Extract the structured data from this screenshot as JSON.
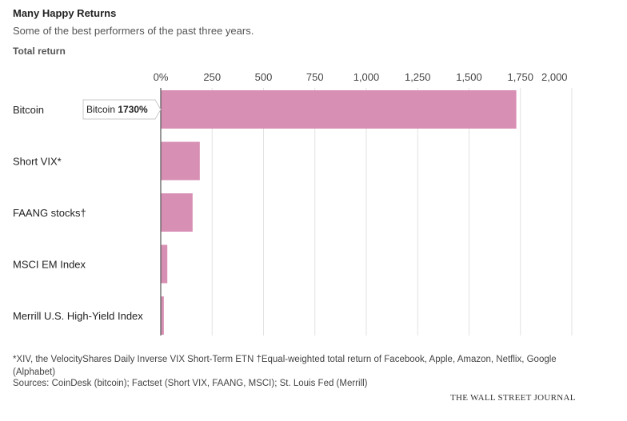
{
  "chart_data": {
    "type": "bar",
    "orientation": "horizontal",
    "title": "Many Happy Returns",
    "subtitle": "Some of the best performers of the past three years.",
    "ylabel": "Total return",
    "xlim": [
      0,
      2000
    ],
    "ticks": [
      0,
      250,
      500,
      750,
      1000,
      1250,
      1500,
      1750,
      2000
    ],
    "tick_labels": [
      "0%",
      "250",
      "500",
      "750",
      "1,000",
      "1,250",
      "1,500",
      "1,750",
      "2,000"
    ],
    "categories": [
      "Bitcoin",
      "Short VIX*",
      "FAANG stocks†",
      "MSCI EM Index",
      "Merrill U.S. High-Yield Index"
    ],
    "values": [
      1730,
      190,
      155,
      32,
      15
    ],
    "bar_color": "#d88fb4",
    "tooltip": {
      "label": "Bitcoin",
      "value": "1730%"
    },
    "footnote": "*XIV, the VelocityShares Daily Inverse VIX Short-Term ETN †Equal-weighted total return of Facebook, Apple, Amazon, Netflix, Google (Alphabet)",
    "sources": "Sources: CoinDesk (bitcoin); Factset (Short VIX, FAANG, MSCI); St. Louis Fed (Merrill)",
    "credit": "THE WALL STREET JOURNAL"
  }
}
